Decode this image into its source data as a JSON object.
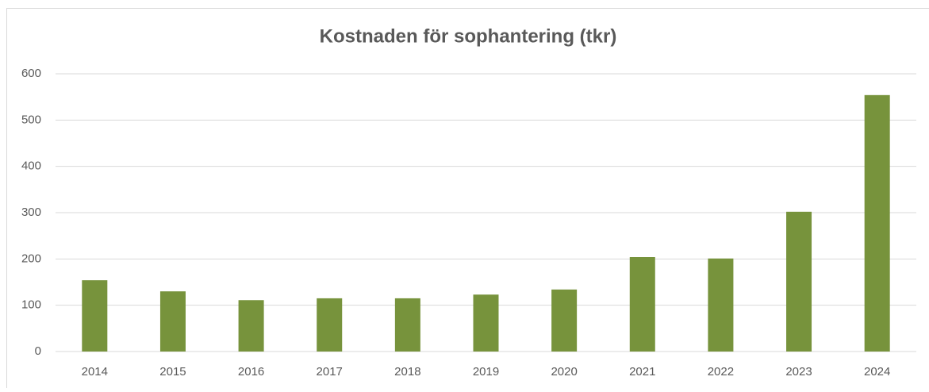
{
  "chart_data": {
    "type": "bar",
    "title": "Kostnaden för sophantering (tkr)",
    "categories": [
      "2014",
      "2015",
      "2016",
      "2017",
      "2018",
      "2019",
      "2020",
      "2021",
      "2022",
      "2023",
      "2024"
    ],
    "values": [
      154,
      130,
      111,
      115,
      115,
      123,
      134,
      204,
      201,
      302,
      554
    ],
    "color": "#77933c",
    "ylim": [
      0,
      600
    ],
    "yticks": [
      0,
      100,
      200,
      300,
      400,
      500,
      600
    ],
    "grid": true
  }
}
